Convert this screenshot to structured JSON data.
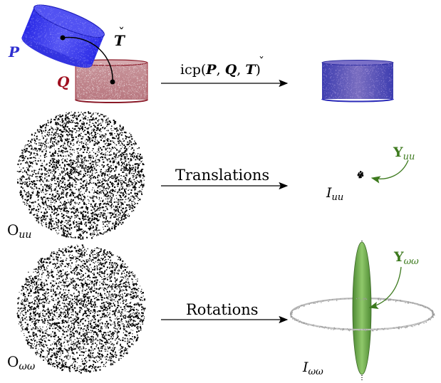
{
  "labels": {
    "P": "P",
    "Q": "Q",
    "T": "T",
    "T_accent": "ˇ",
    "icp_prefix": "icp(",
    "icp_P": "P",
    "icp_comma1": ", ",
    "icp_Q": "Q",
    "icp_comma2": ", ",
    "icp_T": "T",
    "icp_close": ")",
    "translations": "Translations",
    "rotations": "Rotations",
    "O_uu_main": "O",
    "O_uu_sub": "uu",
    "O_ww_main": "O",
    "O_ww_sub": "ωω",
    "I_uu_main": "I",
    "I_uu_sub": "uu",
    "I_ww_main": "I",
    "I_ww_sub": "ωω",
    "Y_uu_main": "Y",
    "Y_uu_sub": "uu",
    "Y_ww_main": "Y",
    "Y_ww_sub": "ωω"
  },
  "colors": {
    "P": "#2f2fd0",
    "P_fill": "#3a3aee",
    "Q": "#a01020",
    "Q_fill": "#c48b92",
    "Y": "#3d7a1e",
    "ellipsoid": "#6aa84f",
    "ring": "#b8b8b8",
    "points": "#000000"
  }
}
